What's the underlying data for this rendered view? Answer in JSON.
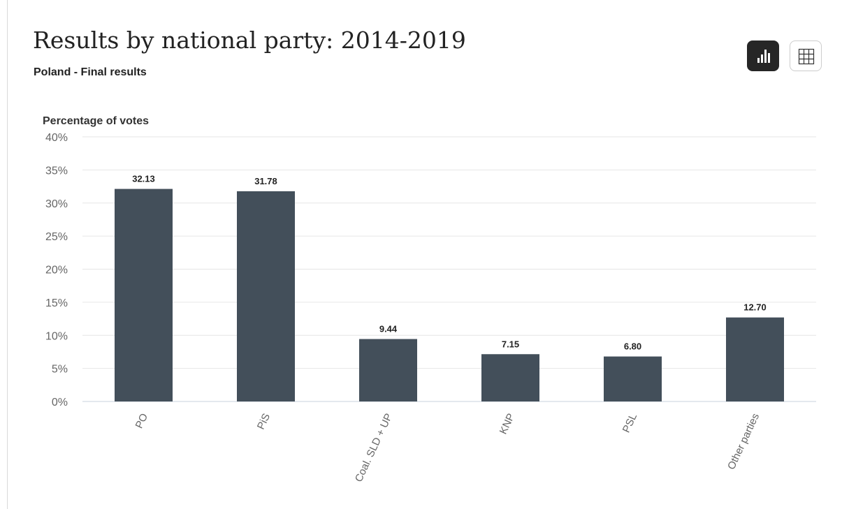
{
  "header": {
    "title": "Results by national party: 2014-2019",
    "subtitle": "Poland - Final results"
  },
  "toolbar": {
    "chart_view_icon": "bar-chart-icon",
    "table_view_icon": "table-grid-icon",
    "active_view": "chart"
  },
  "colors": {
    "bar": "#434f5a",
    "grid": "#e6e6e6",
    "axis": "#c8d0dc",
    "tick_text": "#666666",
    "label_text": "#222222"
  },
  "chart_data": {
    "type": "bar",
    "ylabel": "Percentage of votes",
    "categories": [
      "PO",
      "PiS",
      "Coal. SLD + UP",
      "KNP",
      "PSL",
      "Other parties"
    ],
    "values": [
      32.13,
      31.78,
      9.44,
      7.15,
      6.8,
      12.7
    ],
    "value_labels": [
      "32.13",
      "31.78",
      "9.44",
      "7.15",
      "6.80",
      "12.70"
    ],
    "ylim": [
      0,
      40
    ],
    "yticks": [
      0,
      5,
      10,
      15,
      20,
      25,
      30,
      35,
      40
    ],
    "ytick_labels": [
      "0%",
      "5%",
      "10%",
      "15%",
      "20%",
      "25%",
      "30%",
      "35%",
      "40%"
    ],
    "grid": true,
    "legend": "none"
  }
}
